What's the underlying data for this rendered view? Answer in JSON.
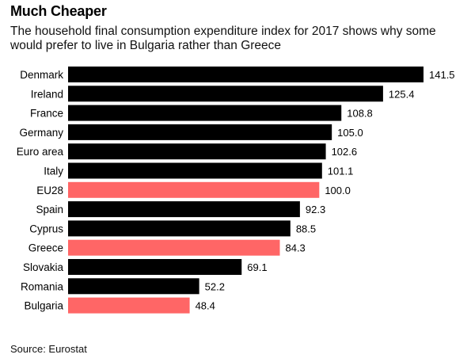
{
  "title": "Much Cheaper",
  "subtitle": "The household final consumption expenditure index for 2017 shows why some would prefer to live in Bulgaria rather than Greece",
  "source": "Source: Eurostat",
  "colors": {
    "default_bar": "#000000",
    "highlight_bar": "#ff6666"
  },
  "chart_data": {
    "type": "bar",
    "orientation": "horizontal",
    "categories": [
      "Denmark",
      "Ireland",
      "France",
      "Germany",
      "Euro area",
      "Italy",
      "EU28",
      "Spain",
      "Cyprus",
      "Greece",
      "Slovakia",
      "Romania",
      "Bulgaria"
    ],
    "values": [
      141.5,
      125.4,
      108.8,
      105.0,
      102.6,
      101.1,
      100.0,
      92.3,
      88.5,
      84.3,
      69.1,
      52.2,
      48.4
    ],
    "value_labels": [
      "141.5",
      "125.4",
      "108.8",
      "105.0",
      "102.6",
      "101.1",
      "100.0",
      "92.3",
      "88.5",
      "84.3",
      "69.1",
      "52.2",
      "48.4"
    ],
    "highlighted": [
      "EU28",
      "Greece",
      "Bulgaria"
    ],
    "title": "Much Cheaper",
    "xlabel": "",
    "ylabel": "",
    "xlim": [
      0,
      141.5
    ],
    "grid": false,
    "legend": "none"
  }
}
